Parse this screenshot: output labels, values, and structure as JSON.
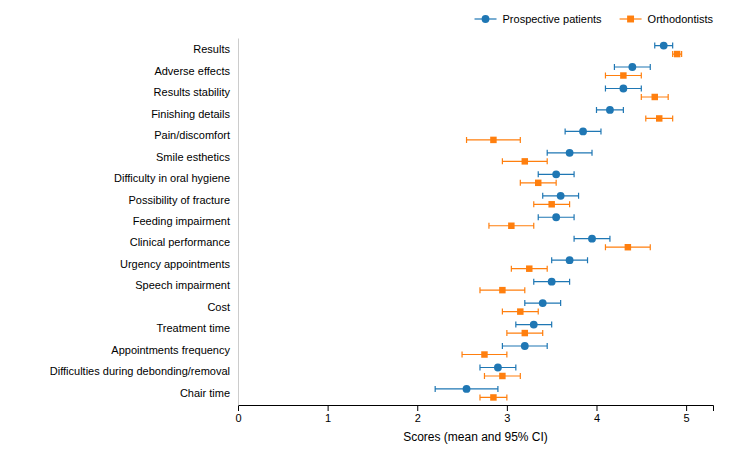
{
  "chart_data": {
    "type": "errorbar",
    "orientation": "horizontal",
    "categories": [
      "Results",
      "Adverse effects",
      "Results stability",
      "Finishing details",
      "Pain/discomfort",
      "Smile esthetics",
      "Difficulty in oral hygiene",
      "Possibility of fracture",
      "Feeding impairment",
      "Clinical performance",
      "Urgency appointments",
      "Speech impairment",
      "Cost",
      "Treatment time",
      "Appointments frequency",
      "Difficulties during debonding/removal",
      "Chair time"
    ],
    "series": [
      {
        "name": "Prospective patients",
        "marker": "circle",
        "values": [
          4.75,
          4.4,
          4.3,
          4.15,
          3.85,
          3.7,
          3.55,
          3.6,
          3.55,
          3.95,
          3.7,
          3.5,
          3.4,
          3.3,
          3.2,
          2.9,
          2.55
        ],
        "ci_lo": [
          4.65,
          4.2,
          4.1,
          4.0,
          3.65,
          3.45,
          3.35,
          3.4,
          3.35,
          3.75,
          3.5,
          3.3,
          3.2,
          3.1,
          2.95,
          2.7,
          2.2
        ],
        "ci_hi": [
          4.85,
          4.6,
          4.5,
          4.3,
          4.05,
          3.95,
          3.75,
          3.8,
          3.75,
          4.15,
          3.9,
          3.7,
          3.6,
          3.5,
          3.45,
          3.1,
          2.9
        ]
      },
      {
        "name": "Orthodontists",
        "marker": "square",
        "values": [
          4.9,
          4.3,
          4.65,
          4.7,
          2.85,
          3.2,
          3.35,
          3.5,
          3.05,
          4.35,
          3.25,
          2.95,
          3.15,
          3.2,
          2.75,
          2.95,
          2.85
        ],
        "ci_lo": [
          4.85,
          4.1,
          4.5,
          4.55,
          2.55,
          2.95,
          3.15,
          3.3,
          2.8,
          4.1,
          3.05,
          2.7,
          2.95,
          3.0,
          2.5,
          2.75,
          2.7
        ],
        "ci_hi": [
          4.95,
          4.5,
          4.8,
          4.85,
          3.15,
          3.45,
          3.55,
          3.7,
          3.3,
          4.6,
          3.45,
          3.2,
          3.35,
          3.4,
          3.0,
          3.15,
          3.0
        ]
      }
    ],
    "xlabel": "Scores (mean and 95% CI)",
    "xlim": [
      0,
      5.3
    ],
    "xticks": [
      0,
      1,
      2,
      3,
      4,
      5
    ],
    "grid": false,
    "legend": "upper right"
  }
}
